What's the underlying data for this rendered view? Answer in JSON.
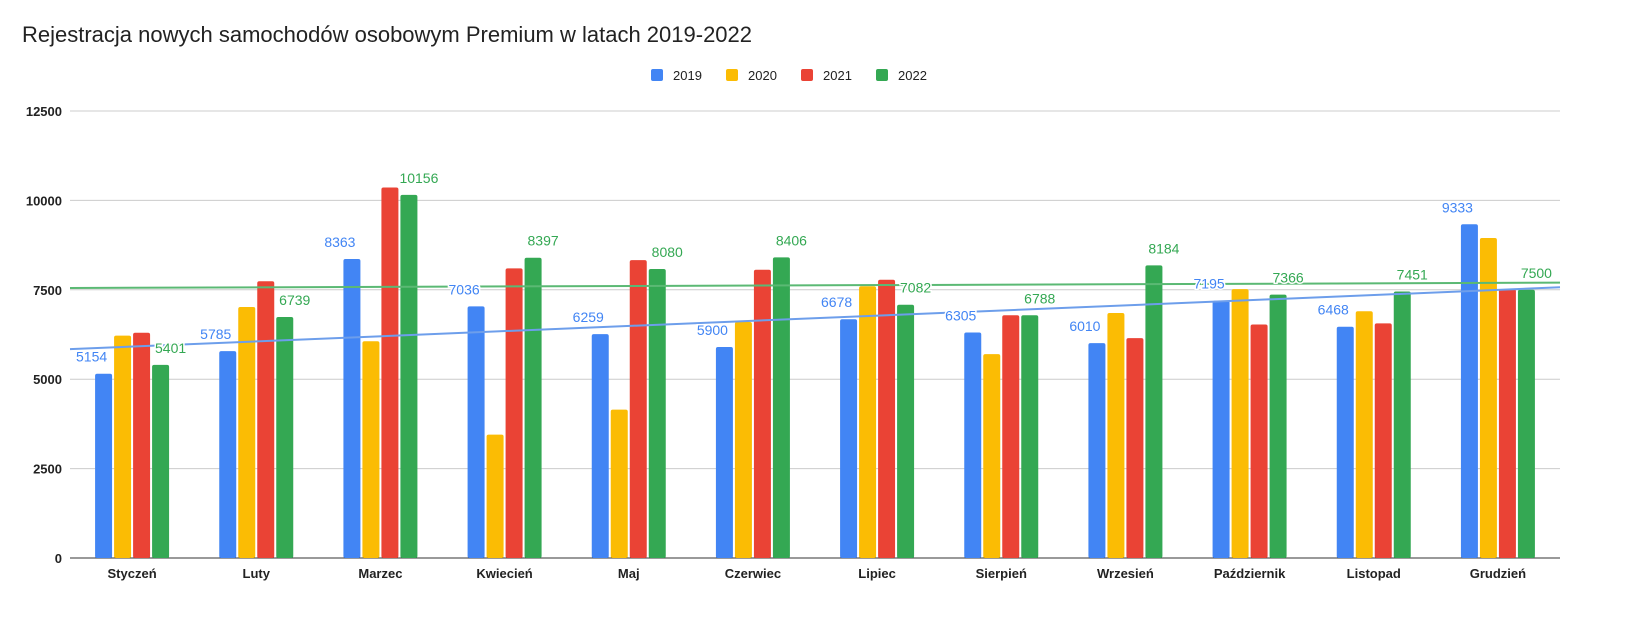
{
  "chart_data": {
    "type": "bar",
    "title": "Rejestracja nowych samochodów osobowym Premium w latach 2019-2022",
    "xlabel": "",
    "ylabel": "",
    "ylim": [
      0,
      12500
    ],
    "yticks": [
      0,
      2500,
      5000,
      7500,
      10000,
      12500
    ],
    "grid": true,
    "legend_position": "top",
    "categories": [
      "Styczeń",
      "Luty",
      "Marzec",
      "Kwiecień",
      "Maj",
      "Czerwiec",
      "Lipiec",
      "Sierpień",
      "Wrzesień",
      "Październik",
      "Listopad",
      "Grudzień"
    ],
    "series": [
      {
        "name": "2019",
        "color": "#4285f4",
        "labeled": true,
        "values": [
          5154,
          5785,
          8363,
          7036,
          6259,
          5900,
          6678,
          6305,
          6010,
          7195,
          6468,
          9333
        ]
      },
      {
        "name": "2020",
        "color": "#fbbc04",
        "labeled": false,
        "values": [
          6220,
          7020,
          6060,
          3450,
          4150,
          6600,
          7600,
          5700,
          6850,
          7520,
          6900,
          8950
        ]
      },
      {
        "name": "2021",
        "color": "#ea4335",
        "labeled": false,
        "values": [
          6300,
          7740,
          10360,
          8100,
          8330,
          8060,
          7780,
          6790,
          6150,
          6530,
          6560,
          7520
        ]
      },
      {
        "name": "2022",
        "color": "#34a853",
        "labeled": true,
        "values": [
          5401,
          6739,
          10156,
          8397,
          8080,
          8406,
          7082,
          6788,
          8184,
          7366,
          7451,
          7500
        ]
      }
    ],
    "trendlines": [
      {
        "series": "2019",
        "color": "#6d9eeb",
        "start": 5840,
        "end": 7570
      },
      {
        "series": "2022",
        "color": "#5bb974",
        "start": 7550,
        "end": 7700
      }
    ]
  }
}
